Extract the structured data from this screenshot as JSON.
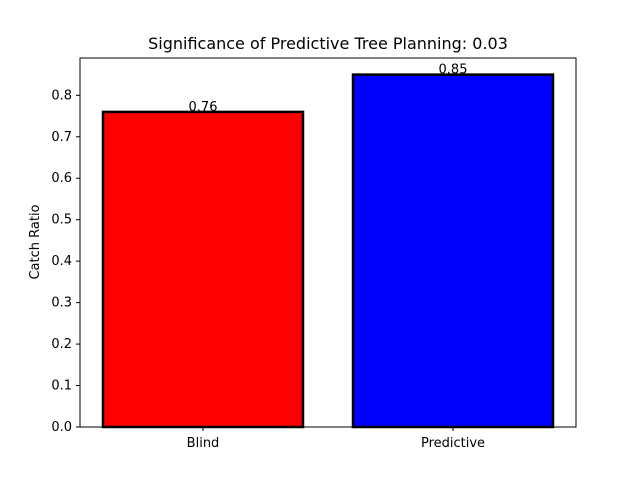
{
  "chart_data": {
    "type": "bar",
    "title": "Significance of Predictive Tree Planning: 0.03",
    "xlabel": "",
    "ylabel": "Catch Ratio",
    "categories": [
      "Blind",
      "Predictive"
    ],
    "values": [
      0.76,
      0.85
    ],
    "value_labels": [
      "0.76",
      "0.85"
    ],
    "bar_colors": [
      "#ff0000",
      "#0000ff"
    ],
    "edge_color": "#000000",
    "ylim": [
      0,
      0.89
    ],
    "yticks": [
      0.0,
      0.1,
      0.2,
      0.3,
      0.4,
      0.5,
      0.6,
      0.7,
      0.8
    ],
    "ytick_labels": [
      "0.0",
      "0.1",
      "0.2",
      "0.3",
      "0.4",
      "0.5",
      "0.6",
      "0.7",
      "0.8"
    ],
    "grid": false,
    "legend": "none"
  }
}
